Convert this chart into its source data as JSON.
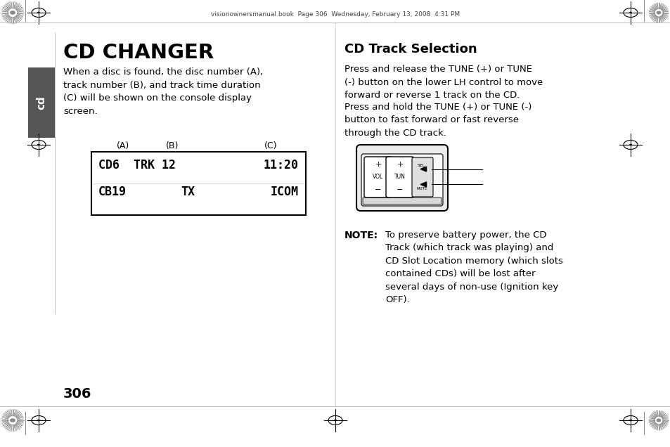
{
  "bg_color": "#ffffff",
  "header_text": "visionownersmanual.book  Page 306  Wednesday, February 13, 2008  4:31 PM",
  "title_cd_changer": "CD CHANGER",
  "body_left_1": "When a disc is found, the disc number (A),\ntrack number (B), and track time duration\n(C) will be shown on the console display\nscreen.",
  "label_A": "(A)",
  "label_B": "(B)",
  "label_C": "(C)",
  "title_cd_track": "CD Track Selection",
  "body_right_1": "Press and release the TUNE (+) or TUNE\n(-) button on the lower LH control to move\nforward or reverse 1 track on the CD.",
  "body_right_2": "Press and hold the TUNE (+) or TUNE (-)\nbutton to fast forward or fast reverse\nthrough the CD track.",
  "note_label": "NOTE:",
  "note_text": "To preserve battery power, the CD\nTrack (which track was playing) and\nCD Slot Location memory (which slots\ncontained CDs) will be lost after\nseveral days of non-use (Ignition key\nOFF).",
  "page_number": "306",
  "tab_color": "#555555",
  "tab_text": "cd",
  "tab_text_color": "#ffffff",
  "display_row1_left": "CD6  TRK 12",
  "display_row1_right": "11:20",
  "display_row2_left": "CB19",
  "display_row2_mid": "TX",
  "display_row2_right": "ICOM"
}
